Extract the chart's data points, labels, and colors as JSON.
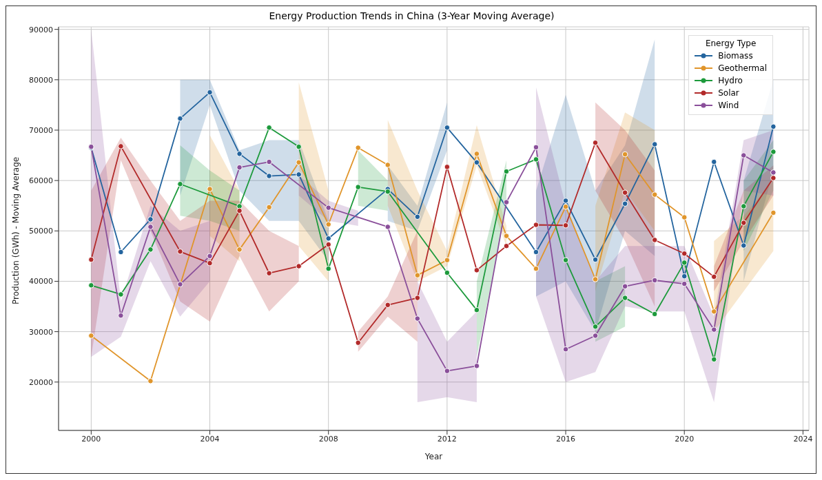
{
  "chart_data": {
    "type": "line",
    "title": "Energy Production Trends in China (3-Year Moving Average)",
    "xlabel": "Year",
    "ylabel": "Production (GWh) - Moving Average",
    "legend_title": "Energy Type",
    "x": [
      2000,
      2001,
      2002,
      2003,
      2004,
      2005,
      2006,
      2007,
      2008,
      2009,
      2010,
      2011,
      2012,
      2013,
      2014,
      2015,
      2016,
      2017,
      2018,
      2019,
      2020,
      2021,
      2022,
      2023
    ],
    "series": [
      {
        "name": "Biomass",
        "color": "#23649e",
        "values": [
          66500,
          45800,
          52300,
          72300,
          77500,
          65300,
          60900,
          61200,
          48500,
          null,
          58300,
          52800,
          70500,
          63600,
          null,
          45800,
          56000,
          44300,
          55400,
          67200,
          41000,
          63700,
          47100,
          70700
        ],
        "lower": [
          null,
          null,
          null,
          57000,
          75000,
          58000,
          52000,
          52000,
          44000,
          null,
          52000,
          50000,
          66000,
          null,
          null,
          37000,
          40000,
          30000,
          50000,
          45000,
          null,
          null,
          40000,
          62000
        ],
        "upper": [
          null,
          null,
          null,
          80000,
          80000,
          66000,
          68000,
          68000,
          52000,
          null,
          63000,
          55000,
          75500,
          null,
          null,
          58000,
          77000,
          58000,
          67000,
          88000,
          null,
          null,
          60000,
          80000
        ]
      },
      {
        "name": "Geothermal",
        "color": "#e0952b",
        "values": [
          29200,
          null,
          20200,
          null,
          58300,
          46300,
          54700,
          63600,
          51300,
          66500,
          63100,
          41200,
          44200,
          65300,
          49000,
          42500,
          54800,
          40400,
          65200,
          57200,
          52700,
          34000,
          null,
          53600
        ],
        "lower": [
          null,
          null,
          null,
          null,
          49000,
          44000,
          null,
          47000,
          40000,
          null,
          55000,
          40000,
          43000,
          63000,
          47000,
          null,
          null,
          38000,
          58000,
          50000,
          null,
          30000,
          38000,
          46000
        ],
        "upper": [
          null,
          null,
          null,
          null,
          69000,
          58000,
          null,
          79500,
          58000,
          null,
          72000,
          58000,
          46000,
          71000,
          51000,
          null,
          null,
          55000,
          73500,
          70000,
          null,
          48000,
          53000,
          60000
        ]
      },
      {
        "name": "Hydro",
        "color": "#1d9a3c",
        "values": [
          39200,
          37400,
          46300,
          59300,
          null,
          54900,
          70500,
          66700,
          42500,
          58700,
          57800,
          null,
          41700,
          34300,
          61800,
          64200,
          44200,
          31000,
          36700,
          33500,
          43700,
          24500,
          54900,
          65700
        ],
        "lower": [
          null,
          null,
          null,
          53000,
          52000,
          50000,
          null,
          null,
          null,
          55000,
          54000,
          null,
          null,
          25000,
          55000,
          null,
          null,
          28000,
          31000,
          null,
          null,
          null,
          46000,
          58000
        ],
        "upper": [
          null,
          null,
          null,
          67000,
          62000,
          58000,
          null,
          null,
          null,
          66000,
          60000,
          null,
          null,
          40000,
          64000,
          null,
          null,
          40000,
          43000,
          null,
          null,
          null,
          60000,
          68000
        ]
      },
      {
        "name": "Solar",
        "color": "#b22a2a",
        "values": [
          44300,
          66800,
          null,
          45900,
          43600,
          54000,
          41600,
          43000,
          47300,
          27800,
          35300,
          36700,
          62700,
          42200,
          47000,
          51200,
          51100,
          67500,
          57600,
          48200,
          45500,
          40900,
          51600,
          60500
        ],
        "lower": [
          25000,
          64000,
          50000,
          36000,
          32000,
          45000,
          34000,
          40000,
          null,
          26000,
          33000,
          28000,
          null,
          null,
          null,
          null,
          null,
          58000,
          48000,
          35000,
          null,
          38000,
          48000,
          57000
        ],
        "upper": [
          58000,
          68500,
          60000,
          52000,
          56000,
          56000,
          50000,
          47000,
          null,
          30000,
          37000,
          50000,
          null,
          null,
          null,
          null,
          null,
          75500,
          70000,
          62000,
          null,
          43000,
          58000,
          63000
        ]
      },
      {
        "name": "Wind",
        "color": "#8a4f9a",
        "values": [
          66700,
          33200,
          50800,
          39400,
          45000,
          62600,
          63700,
          null,
          54600,
          null,
          50800,
          32600,
          22200,
          23200,
          55700,
          66600,
          26500,
          29200,
          39000,
          40200,
          39500,
          30400,
          65000,
          61600
        ],
        "lower": [
          25000,
          29000,
          44000,
          33000,
          40000,
          null,
          null,
          57000,
          52000,
          51000,
          null,
          16000,
          17000,
          16000,
          null,
          37000,
          20000,
          22000,
          35000,
          34000,
          34000,
          16000,
          58000,
          57000
        ],
        "upper": [
          90000,
          36000,
          55000,
          50000,
          52000,
          null,
          null,
          61000,
          56000,
          54000,
          null,
          40000,
          28000,
          34000,
          null,
          78500,
          55000,
          40000,
          47000,
          47000,
          47000,
          33000,
          68000,
          70000
        ]
      }
    ],
    "xlim": [
      1998.9,
      2024.2
    ],
    "xticks": [
      2000,
      2004,
      2008,
      2012,
      2016,
      2020,
      2024
    ],
    "ylim": [
      10400,
      90500
    ],
    "yticks": [
      20000,
      30000,
      40000,
      50000,
      60000,
      70000,
      80000,
      90000
    ],
    "grid": true,
    "legend": "top right",
    "marker": "circle",
    "line_style": "solid"
  }
}
